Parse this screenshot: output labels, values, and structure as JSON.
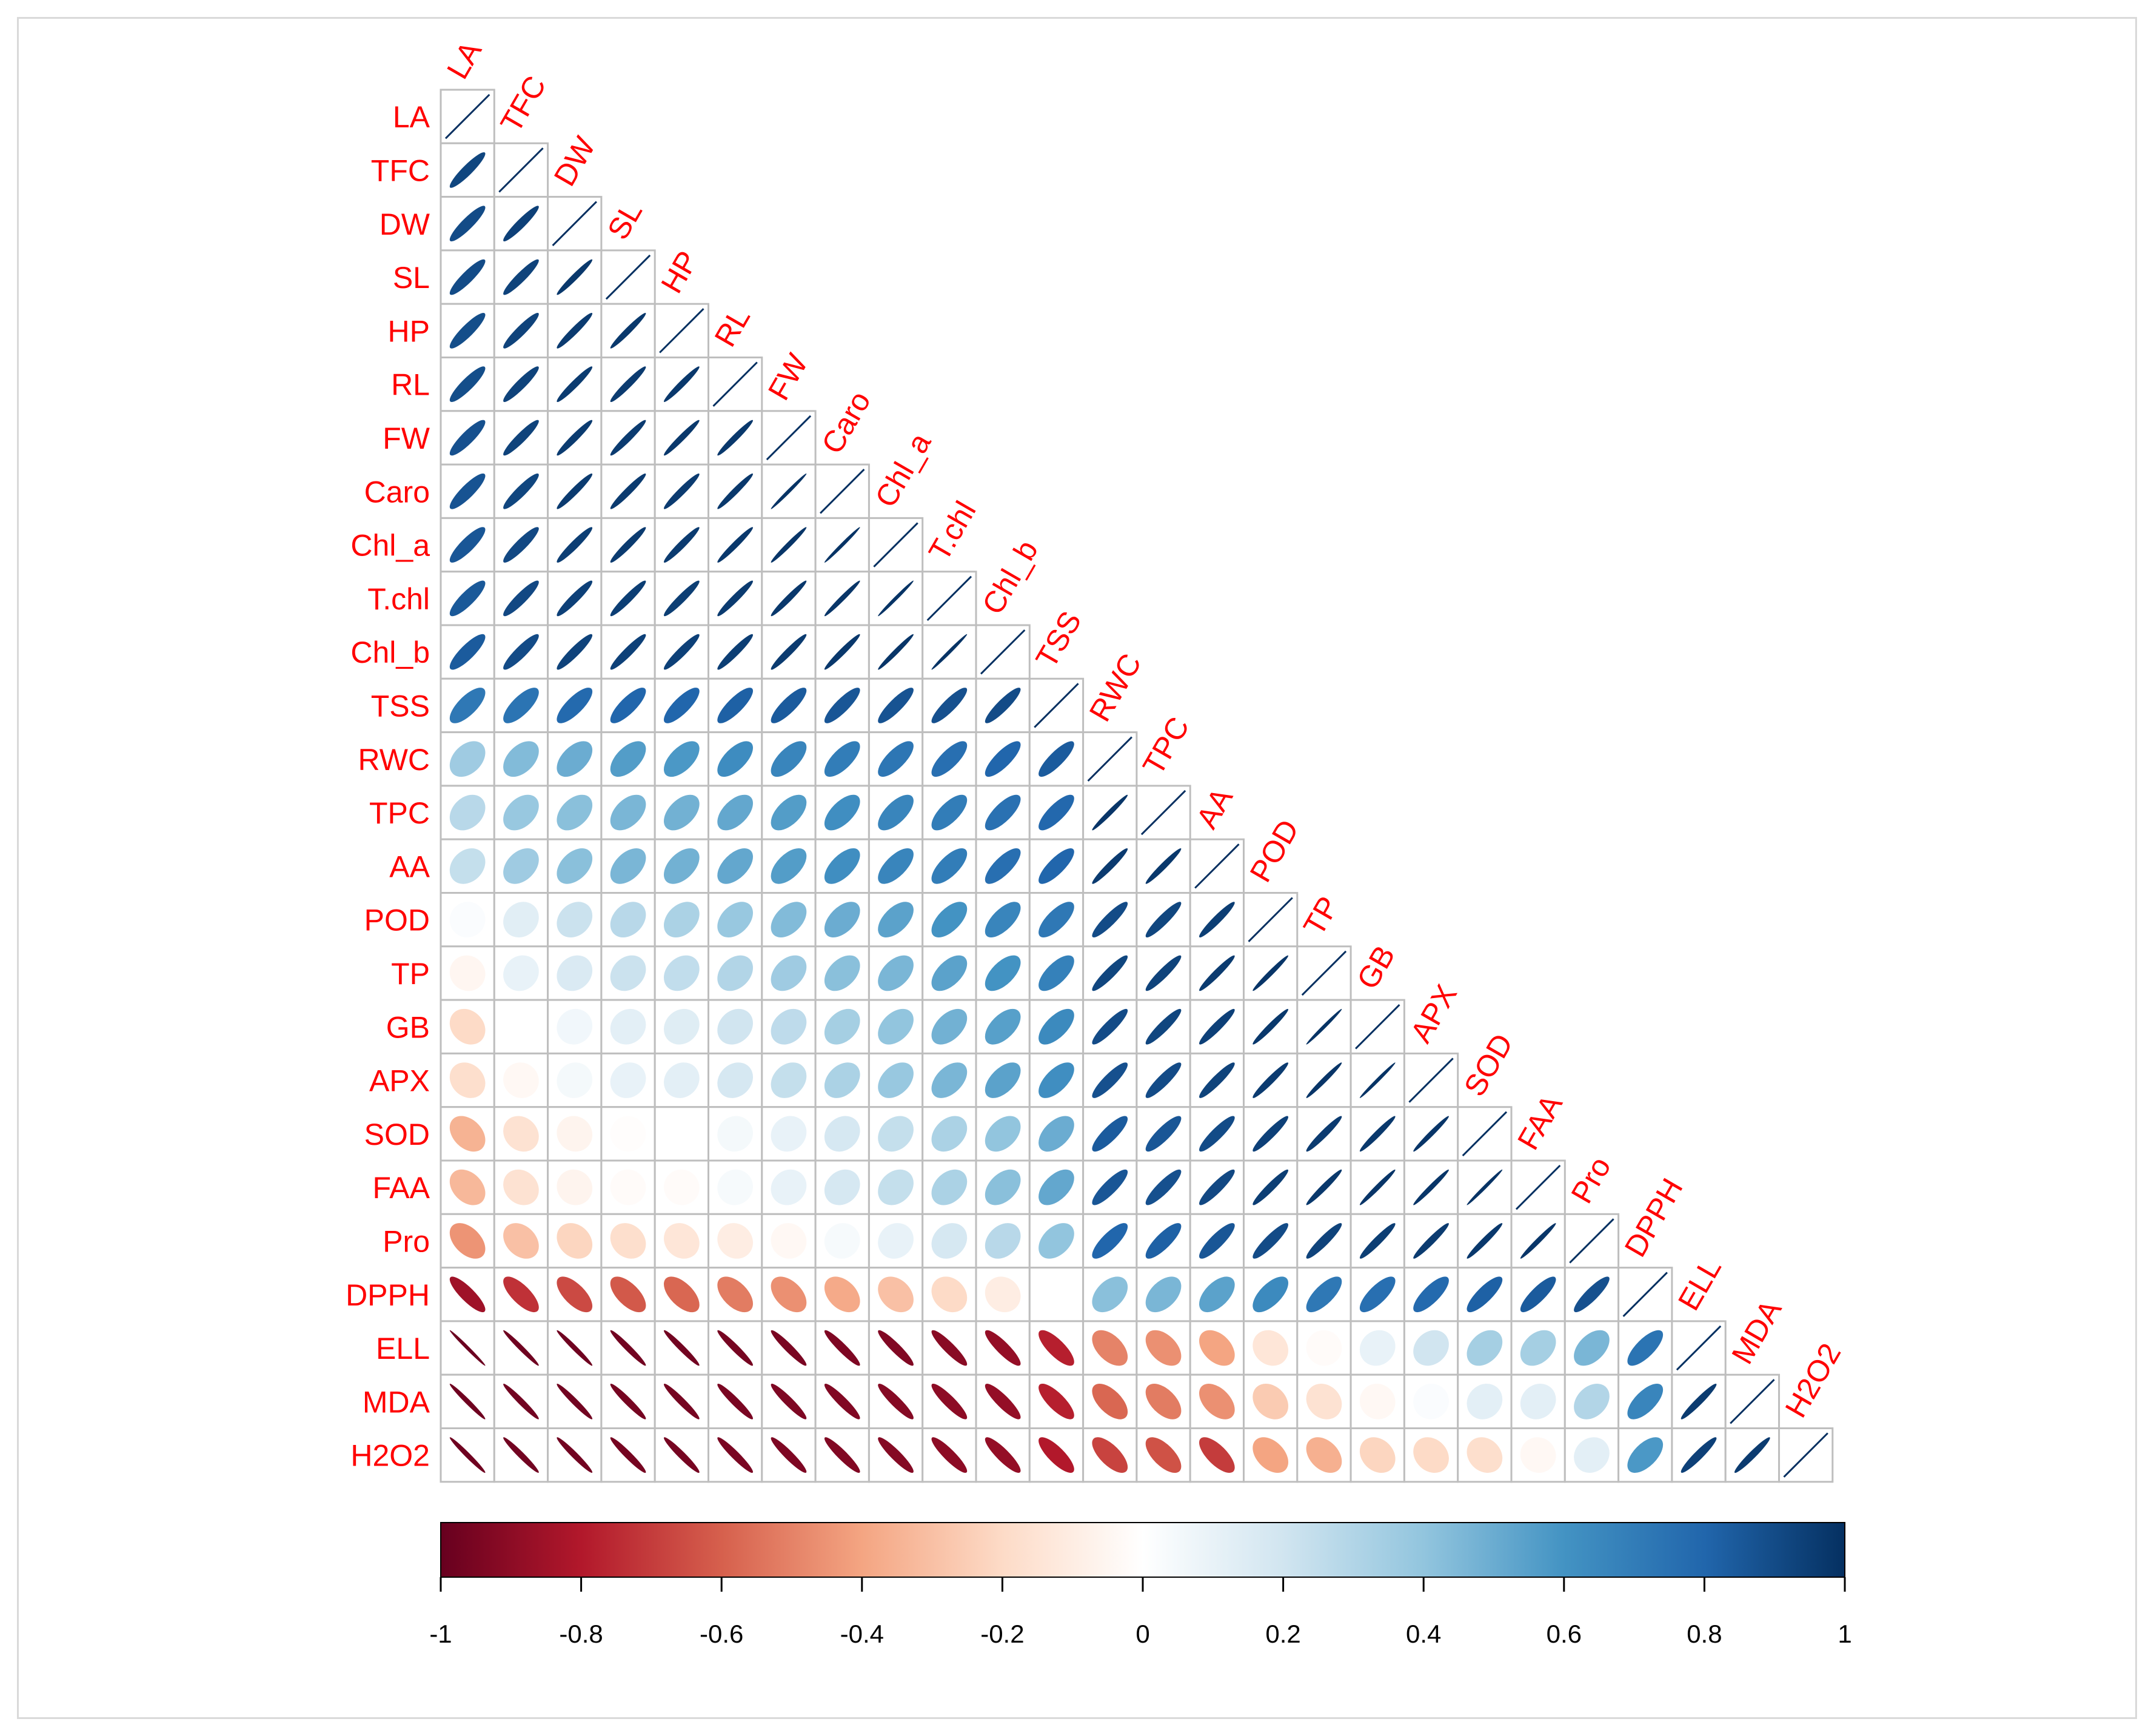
{
  "chart_data": {
    "type": "heatmap",
    "subtype": "correlation-ellipse-lower-triangle",
    "variables": [
      "LA",
      "TFC",
      "DW",
      "SL",
      "HP",
      "RL",
      "FW",
      "Caro",
      "Chl_a",
      "T.chl",
      "Chl_b",
      "TSS",
      "RWC",
      "TPC",
      "AA",
      "POD",
      "TP",
      "GB",
      "APX",
      "SOD",
      "FAA",
      "Pro",
      "DPPH",
      "ELL",
      "MDA",
      "H2O2"
    ],
    "correlation_rows": [
      [
        1
      ],
      [
        0.92,
        1
      ],
      [
        0.9,
        0.94,
        1
      ],
      [
        0.9,
        0.93,
        0.97,
        1
      ],
      [
        0.89,
        0.93,
        0.96,
        0.97,
        1
      ],
      [
        0.89,
        0.93,
        0.96,
        0.96,
        0.97,
        1
      ],
      [
        0.88,
        0.93,
        0.96,
        0.96,
        0.97,
        0.97,
        1
      ],
      [
        0.87,
        0.92,
        0.96,
        0.96,
        0.96,
        0.97,
        0.99,
        1
      ],
      [
        0.86,
        0.91,
        0.95,
        0.96,
        0.96,
        0.97,
        0.98,
        0.99,
        1
      ],
      [
        0.85,
        0.91,
        0.94,
        0.95,
        0.95,
        0.96,
        0.97,
        0.98,
        0.99,
        1
      ],
      [
        0.84,
        0.9,
        0.93,
        0.94,
        0.94,
        0.95,
        0.96,
        0.97,
        0.98,
        0.99,
        1
      ],
      [
        0.72,
        0.74,
        0.78,
        0.8,
        0.8,
        0.82,
        0.84,
        0.86,
        0.87,
        0.88,
        0.9,
        1
      ],
      [
        0.36,
        0.44,
        0.5,
        0.56,
        0.58,
        0.63,
        0.66,
        0.7,
        0.73,
        0.76,
        0.8,
        0.84,
        1
      ],
      [
        0.28,
        0.38,
        0.42,
        0.46,
        0.48,
        0.52,
        0.56,
        0.62,
        0.66,
        0.7,
        0.75,
        0.79,
        0.98,
        1
      ],
      [
        0.24,
        0.36,
        0.42,
        0.46,
        0.48,
        0.52,
        0.56,
        0.62,
        0.66,
        0.7,
        0.76,
        0.8,
        0.96,
        0.97,
        1
      ],
      [
        0.02,
        0.13,
        0.22,
        0.28,
        0.32,
        0.38,
        0.44,
        0.5,
        0.54,
        0.6,
        0.66,
        0.72,
        0.9,
        0.92,
        0.95,
        1
      ],
      [
        -0.05,
        0.1,
        0.16,
        0.22,
        0.25,
        0.3,
        0.36,
        0.42,
        0.46,
        0.54,
        0.6,
        0.68,
        0.92,
        0.93,
        0.96,
        0.98,
        1
      ],
      [
        -0.2,
        0.0,
        0.06,
        0.12,
        0.14,
        0.2,
        0.26,
        0.34,
        0.4,
        0.48,
        0.55,
        0.64,
        0.9,
        0.92,
        0.94,
        0.97,
        0.99,
        1
      ],
      [
        -0.18,
        -0.04,
        0.05,
        0.1,
        0.12,
        0.18,
        0.24,
        0.32,
        0.38,
        0.46,
        0.54,
        0.62,
        0.88,
        0.9,
        0.93,
        0.96,
        0.98,
        0.99,
        1
      ],
      [
        -0.35,
        -0.16,
        -0.06,
        -0.01,
        0.0,
        0.05,
        0.1,
        0.18,
        0.24,
        0.32,
        0.4,
        0.5,
        0.84,
        0.86,
        0.9,
        0.94,
        0.96,
        0.97,
        0.98,
        1
      ],
      [
        -0.33,
        -0.16,
        -0.06,
        -0.02,
        -0.02,
        0.04,
        0.1,
        0.18,
        0.24,
        0.32,
        0.42,
        0.52,
        0.86,
        0.88,
        0.91,
        0.95,
        0.97,
        0.98,
        0.98,
        0.99,
        1
      ],
      [
        -0.45,
        -0.3,
        -0.22,
        -0.18,
        -0.14,
        -0.1,
        -0.04,
        0.04,
        0.1,
        0.18,
        0.28,
        0.4,
        0.8,
        0.82,
        0.86,
        0.9,
        0.93,
        0.95,
        0.96,
        0.97,
        0.98,
        1
      ],
      [
        -0.85,
        -0.73,
        -0.66,
        -0.62,
        -0.58,
        -0.52,
        -0.46,
        -0.38,
        -0.3,
        -0.2,
        -0.1,
        0.0,
        0.42,
        0.46,
        0.54,
        0.64,
        0.72,
        0.76,
        0.78,
        0.82,
        0.84,
        0.88,
        1
      ],
      [
        -0.99,
        -0.98,
        -0.98,
        -0.97,
        -0.97,
        -0.96,
        -0.95,
        -0.94,
        -0.93,
        -0.91,
        -0.88,
        -0.78,
        -0.5,
        -0.46,
        -0.4,
        -0.14,
        -0.02,
        0.1,
        0.2,
        0.34,
        0.34,
        0.46,
        0.74,
        1
      ],
      [
        -0.98,
        -0.97,
        -0.97,
        -0.96,
        -0.96,
        -0.95,
        -0.94,
        -0.93,
        -0.92,
        -0.9,
        -0.88,
        -0.78,
        -0.58,
        -0.52,
        -0.46,
        -0.26,
        -0.16,
        -0.04,
        0.02,
        0.12,
        0.12,
        0.3,
        0.66,
        0.96,
        1
      ],
      [
        -0.98,
        -0.97,
        -0.97,
        -0.96,
        -0.96,
        -0.95,
        -0.94,
        -0.93,
        -0.92,
        -0.9,
        -0.88,
        -0.8,
        -0.68,
        -0.64,
        -0.7,
        -0.4,
        -0.36,
        -0.22,
        -0.2,
        -0.18,
        -0.04,
        0.12,
        0.58,
        0.94,
        0.96,
        1
      ]
    ],
    "colorbar": {
      "range": [
        -1,
        1
      ],
      "ticks": [
        "-1",
        "-0.8",
        "-0.6",
        "-0.4",
        "-0.2",
        "0",
        "0.2",
        "0.4",
        "0.6",
        "0.8",
        "1"
      ],
      "colors": [
        "#67001F",
        "#B2182B",
        "#D6604D",
        "#F4A582",
        "#FDDBC7",
        "#FFFFFF",
        "#D1E5F0",
        "#92C5DE",
        "#4393C3",
        "#2166AC",
        "#053061"
      ]
    },
    "label_color": "#FF0000",
    "grid_color": "#BEBEBE",
    "tick_color": "#000000"
  }
}
